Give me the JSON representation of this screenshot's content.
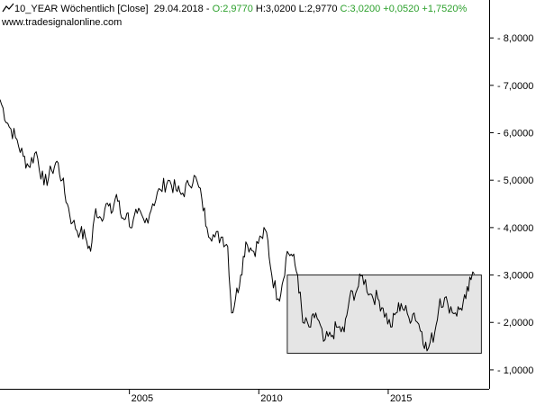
{
  "header": {
    "icon": "line-chart-icon",
    "symbol": "10_YEAR",
    "interval": "Wöchentlich",
    "mode": "[Close]",
    "date": "29.04.2018",
    "open_label": "O:",
    "open": "2,9770",
    "high_label": "H:",
    "high": "3,0200",
    "low_label": "L:",
    "low": "2,9770",
    "close_label": "C:",
    "close": "3,0200",
    "change": "+0,0520",
    "change_pct": "+1,7520%",
    "source": "www.tradesignalonline.com",
    "positive_color": "#2ca02c"
  },
  "chart_data": {
    "type": "line",
    "series": [
      {
        "values": [
          [
            2000.0,
            6.7
          ],
          [
            2000.3,
            6.2
          ],
          [
            2000.6,
            5.9
          ],
          [
            2000.9,
            5.5
          ],
          [
            2001.1,
            5.3
          ],
          [
            2001.4,
            5.6
          ],
          [
            2001.7,
            4.9
          ],
          [
            2002.0,
            5.2
          ],
          [
            2002.2,
            5.4
          ],
          [
            2002.4,
            5.0
          ],
          [
            2002.6,
            4.5
          ],
          [
            2002.8,
            4.1
          ],
          [
            2003.1,
            3.9
          ],
          [
            2003.3,
            3.8
          ],
          [
            2003.5,
            3.5
          ],
          [
            2003.7,
            4.4
          ],
          [
            2003.9,
            4.2
          ],
          [
            2004.1,
            4.5
          ],
          [
            2004.3,
            4.3
          ],
          [
            2004.5,
            4.7
          ],
          [
            2004.7,
            4.2
          ],
          [
            2004.9,
            4.3
          ],
          [
            2005.1,
            4.0
          ],
          [
            2005.3,
            4.3
          ],
          [
            2005.6,
            4.1
          ],
          [
            2005.9,
            4.5
          ],
          [
            2006.2,
            4.8
          ],
          [
            2006.5,
            5.0
          ],
          [
            2006.8,
            4.8
          ],
          [
            2007.0,
            4.7
          ],
          [
            2007.3,
            4.9
          ],
          [
            2007.5,
            5.1
          ],
          [
            2007.8,
            4.6
          ],
          [
            2008.0,
            4.0
          ],
          [
            2008.3,
            3.8
          ],
          [
            2008.6,
            3.8
          ],
          [
            2008.8,
            3.6
          ],
          [
            2008.95,
            2.2
          ],
          [
            2009.1,
            2.5
          ],
          [
            2009.3,
            3.0
          ],
          [
            2009.5,
            3.7
          ],
          [
            2009.8,
            3.5
          ],
          [
            2010.1,
            3.8
          ],
          [
            2010.3,
            3.9
          ],
          [
            2010.5,
            3.0
          ],
          [
            2010.75,
            2.5
          ],
          [
            2010.9,
            2.8
          ],
          [
            2011.1,
            3.5
          ],
          [
            2011.3,
            3.4
          ],
          [
            2011.5,
            3.0
          ],
          [
            2011.7,
            2.0
          ],
          [
            2012.0,
            1.9
          ],
          [
            2012.2,
            2.2
          ],
          [
            2012.5,
            1.6
          ],
          [
            2012.8,
            1.7
          ],
          [
            2013.0,
            1.9
          ],
          [
            2013.3,
            1.8
          ],
          [
            2013.5,
            2.5
          ],
          [
            2013.8,
            2.7
          ],
          [
            2014.0,
            3.0
          ],
          [
            2014.3,
            2.6
          ],
          [
            2014.6,
            2.5
          ],
          [
            2014.8,
            2.3
          ],
          [
            2015.1,
            1.9
          ],
          [
            2015.3,
            2.2
          ],
          [
            2015.5,
            2.4
          ],
          [
            2015.8,
            2.1
          ],
          [
            2016.0,
            2.2
          ],
          [
            2016.3,
            1.8
          ],
          [
            2016.5,
            1.4
          ],
          [
            2016.8,
            1.8
          ],
          [
            2017.0,
            2.5
          ],
          [
            2017.3,
            2.4
          ],
          [
            2017.6,
            2.2
          ],
          [
            2017.8,
            2.3
          ],
          [
            2018.0,
            2.5
          ],
          [
            2018.2,
            2.9
          ],
          [
            2018.33,
            3.02
          ]
        ]
      }
    ],
    "highlight_box": {
      "x": [
        2011.1,
        2018.6
      ],
      "y": [
        1.35,
        3.0
      ],
      "color": "#e5e5e5"
    },
    "xlim": [
      2000.0,
      2018.9
    ],
    "ylim": [
      0.6,
      8.8
    ],
    "x_ticks": [
      {
        "value": 2005,
        "label": "2005"
      },
      {
        "value": 2010,
        "label": "2010"
      },
      {
        "value": 2015,
        "label": "2015"
      }
    ],
    "y_ticks": [
      {
        "value": 1,
        "label": "1,0000"
      },
      {
        "value": 2,
        "label": "2,0000"
      },
      {
        "value": 3,
        "label": "3,0000"
      },
      {
        "value": 4,
        "label": "4,0000"
      },
      {
        "value": 5,
        "label": "5,0000"
      },
      {
        "value": 6,
        "label": "6,0000"
      },
      {
        "value": 7,
        "label": "7,0000"
      },
      {
        "value": 8,
        "label": "8,0000"
      }
    ],
    "grid": false,
    "y_axis_position": "right",
    "line_color": "#000000"
  }
}
